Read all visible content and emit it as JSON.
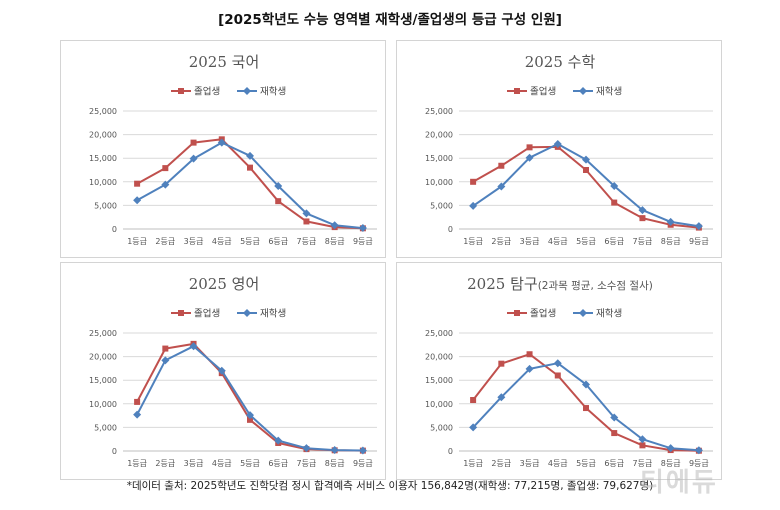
{
  "title": "[2025학년도 수능 영역별 재학생/졸업생의 등급 구성 인원]",
  "footnote": "*데이터 출처: 2025학년도 진학닷컴 정시 합격예측 서비스 이용자 156,842명(재학생: 77,215명, 졸업생: 79,627명)",
  "watermark": "티에듀",
  "colors": {
    "graduate": "#c0504d",
    "current": "#4f81bd",
    "grid": "#d9d9d9",
    "axis": "#bfbfbf"
  },
  "chart_data": [
    {
      "type": "line",
      "title": "2025 국어",
      "subtitle": "",
      "categories": [
        "1등급",
        "2등급",
        "3등급",
        "4등급",
        "5등급",
        "6등급",
        "7등급",
        "8등급",
        "9등급"
      ],
      "ylim": [
        0,
        25000
      ],
      "yticks": [
        "0",
        "5,000",
        "10,000",
        "15,000",
        "20,000",
        "25,000"
      ],
      "legend_position": "top",
      "series": [
        {
          "name": "졸업생",
          "color": "#c0504d",
          "marker": "square",
          "values": [
            9600,
            12900,
            18300,
            19000,
            13000,
            5900,
            1600,
            400,
            150
          ]
        },
        {
          "name": "재학생",
          "color": "#4f81bd",
          "marker": "diamond",
          "values": [
            6100,
            9400,
            14900,
            18300,
            15500,
            9100,
            3300,
            800,
            200
          ]
        }
      ]
    },
    {
      "type": "line",
      "title": "2025 수학",
      "subtitle": "",
      "categories": [
        "1등급",
        "2등급",
        "3등급",
        "4등급",
        "5등급",
        "6등급",
        "7등급",
        "8등급",
        "9등급"
      ],
      "ylim": [
        0,
        25000
      ],
      "yticks": [
        "0",
        "5,000",
        "10,000",
        "15,000",
        "20,000",
        "25,000"
      ],
      "legend_position": "top",
      "series": [
        {
          "name": "졸업생",
          "color": "#c0504d",
          "marker": "square",
          "values": [
            10000,
            13400,
            17300,
            17400,
            12500,
            5600,
            2300,
            900,
            300
          ]
        },
        {
          "name": "재학생",
          "color": "#4f81bd",
          "marker": "diamond",
          "values": [
            4900,
            9000,
            15100,
            18000,
            14700,
            9100,
            4000,
            1500,
            600
          ]
        }
      ]
    },
    {
      "type": "line",
      "title": "2025 영어",
      "subtitle": "",
      "categories": [
        "1등급",
        "2등급",
        "3등급",
        "4등급",
        "5등급",
        "6등급",
        "7등급",
        "8등급",
        "9등급"
      ],
      "ylim": [
        0,
        25000
      ],
      "yticks": [
        "0",
        "5,000",
        "10,000",
        "15,000",
        "20,000",
        "25,000"
      ],
      "legend_position": "top",
      "series": [
        {
          "name": "졸업생",
          "color": "#c0504d",
          "marker": "square",
          "values": [
            10400,
            21700,
            22700,
            16500,
            6600,
            1700,
            400,
            150,
            80
          ]
        },
        {
          "name": "재학생",
          "color": "#4f81bd",
          "marker": "diamond",
          "values": [
            7700,
            19200,
            22200,
            17000,
            7600,
            2200,
            600,
            200,
            100
          ]
        }
      ]
    },
    {
      "type": "line",
      "title": "2025 탐구",
      "subtitle": "(2과목 평균, 소수점 절사)",
      "categories": [
        "1등급",
        "2등급",
        "3등급",
        "4등급",
        "5등급",
        "6등급",
        "7등급",
        "8등급",
        "9등급"
      ],
      "ylim": [
        0,
        25000
      ],
      "yticks": [
        "0",
        "5,000",
        "10,000",
        "15,000",
        "20,000",
        "25,000"
      ],
      "legend_position": "top",
      "series": [
        {
          "name": "졸업생",
          "color": "#c0504d",
          "marker": "square",
          "values": [
            10800,
            18500,
            20500,
            16000,
            9100,
            3800,
            1200,
            200,
            60
          ]
        },
        {
          "name": "재학생",
          "color": "#4f81bd",
          "marker": "diamond",
          "values": [
            5000,
            11400,
            17400,
            18600,
            14100,
            7100,
            2500,
            600,
            150
          ]
        }
      ]
    }
  ]
}
